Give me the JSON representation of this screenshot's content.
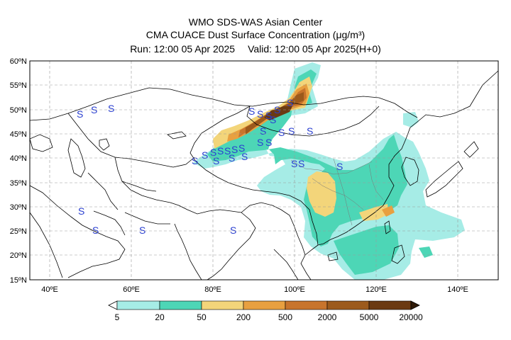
{
  "title": {
    "line1": "WMO SDS-WAS Asian Center",
    "line2": "CMA CUACE Dust Surface Concentration (μg/m³)",
    "run": "Run: 12:00 05 Apr 2025",
    "valid": "Valid: 12:00 05 Apr 2025(H+0)"
  },
  "map": {
    "lat_ticks": [
      "60ºN",
      "55ºN",
      "50ºN",
      "45ºN",
      "40ºN",
      "35ºN",
      "30ºN",
      "25ºN",
      "20ºN",
      "15ºN"
    ],
    "lon_ticks": [
      "40ºE",
      "60ºE",
      "80ºE",
      "100ºE",
      "120ºE",
      "140ºE"
    ],
    "lon_range": [
      35,
      150
    ],
    "lat_range": [
      15,
      60
    ],
    "grid": true
  },
  "colorbar": {
    "labels": [
      "5",
      "20",
      "50",
      "200",
      "500",
      "2000",
      "5000",
      "20000"
    ],
    "colors": [
      "#a6ece6",
      "#4dd6b6",
      "#f3d57a",
      "#e8a040",
      "#c8742c",
      "#9c5a1c",
      "#6b3a12",
      "#2e1a08"
    ],
    "extend": "both"
  },
  "legend_symbol": "S",
  "symbol_color": "#2a3fd0"
}
